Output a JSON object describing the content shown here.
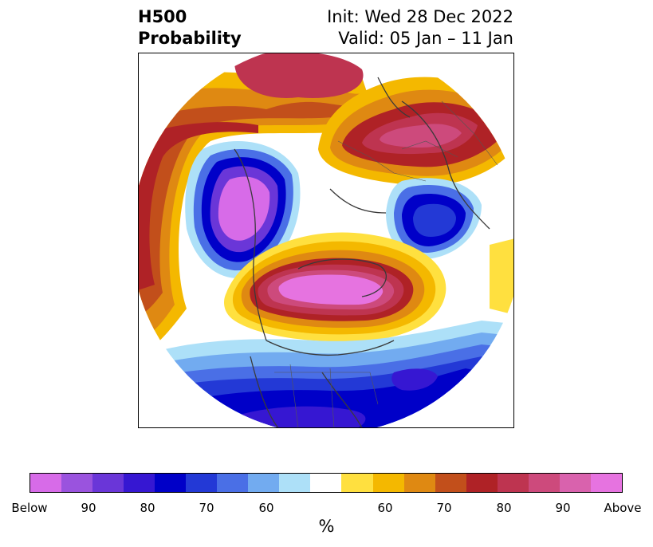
{
  "header": {
    "title_line1": "H500",
    "title_line2": "Probability",
    "init_label": "Init: Wed 28 Dec 2022",
    "valid_label": "Valid: 05 Jan – 11 Jan"
  },
  "map": {
    "type": "polar-stereographic probability anomaly map"
  },
  "colorbar": {
    "unit_label": "%",
    "ticks": [
      "Below",
      "90",
      "80",
      "70",
      "60",
      "60",
      "70",
      "80",
      "90",
      "Above"
    ],
    "colors": [
      "#d76be8",
      "#9a53de",
      "#6a36d8",
      "#3617d2",
      "#0000c8",
      "#2339d6",
      "#4a6fe6",
      "#72abf0",
      "#ade0f8",
      "#ffffff",
      "#ffe03f",
      "#f4b800",
      "#df8912",
      "#c24f1b",
      "#af2226",
      "#be3450",
      "#cd4a7c",
      "#d962ad",
      "#e673e0"
    ]
  }
}
